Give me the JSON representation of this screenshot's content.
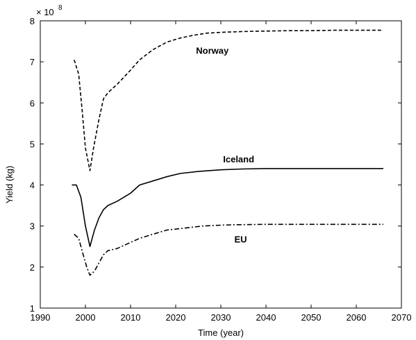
{
  "chart_data": {
    "type": "line",
    "title": "",
    "xlabel": "Time (year)",
    "ylabel": "Yield (kg)",
    "y_multiplier": "× 10",
    "y_multiplier_exponent": "8",
    "xlim": [
      1990,
      2070
    ],
    "ylim": [
      1,
      8
    ],
    "x_ticks": [
      1990,
      2000,
      2010,
      2020,
      2030,
      2040,
      2050,
      2060,
      2070
    ],
    "y_ticks": [
      1,
      2,
      3,
      4,
      5,
      6,
      7,
      8
    ],
    "grid": false,
    "legend": "none",
    "series": [
      {
        "name": "Norway",
        "style": "dashed",
        "x": [
          1997.5,
          1998.5,
          1999.3,
          2000,
          2001,
          2001.8,
          2003,
          2004,
          2005,
          2007,
          2010,
          2012,
          2015,
          2018,
          2021,
          2024,
          2027,
          2030,
          2035,
          2040,
          2045,
          2050,
          2055,
          2060,
          2066
        ],
        "y": [
          7.05,
          6.7,
          5.8,
          4.9,
          4.35,
          4.9,
          5.6,
          6.1,
          6.25,
          6.45,
          6.8,
          7.05,
          7.3,
          7.48,
          7.58,
          7.65,
          7.7,
          7.72,
          7.74,
          7.75,
          7.76,
          7.76,
          7.77,
          7.77,
          7.77
        ]
      },
      {
        "name": "Iceland",
        "style": "solid",
        "x": [
          1997,
          1998,
          1999,
          2000,
          2001,
          2002,
          2003,
          2004,
          2005,
          2007,
          2010,
          2012,
          2015,
          2018,
          2021,
          2025,
          2030,
          2035,
          2040,
          2050,
          2060,
          2066
        ],
        "y": [
          4.0,
          4.0,
          3.7,
          3.0,
          2.5,
          2.9,
          3.2,
          3.4,
          3.5,
          3.6,
          3.8,
          4.0,
          4.1,
          4.2,
          4.28,
          4.33,
          4.37,
          4.39,
          4.4,
          4.4,
          4.4,
          4.4
        ]
      },
      {
        "name": "EU",
        "style": "dashdot",
        "x": [
          1997.5,
          1998.5,
          1999.5,
          2000.3,
          2001,
          2002,
          2003,
          2004,
          2005,
          2007,
          2009,
          2012,
          2015,
          2018,
          2022,
          2026,
          2030,
          2033,
          2040,
          2050,
          2060,
          2066
        ],
        "y": [
          2.8,
          2.7,
          2.3,
          2.0,
          1.8,
          1.9,
          2.1,
          2.3,
          2.4,
          2.45,
          2.55,
          2.7,
          2.8,
          2.9,
          2.95,
          3.0,
          3.02,
          3.03,
          3.04,
          3.04,
          3.04,
          3.04
        ]
      }
    ],
    "annotations": [
      {
        "text": "Norway",
        "x": 2024.5,
        "y": 7.2
      },
      {
        "text": "Iceland",
        "x": 2030.5,
        "y": 4.55
      },
      {
        "text": "EU",
        "x": 2033,
        "y": 2.6
      }
    ]
  }
}
